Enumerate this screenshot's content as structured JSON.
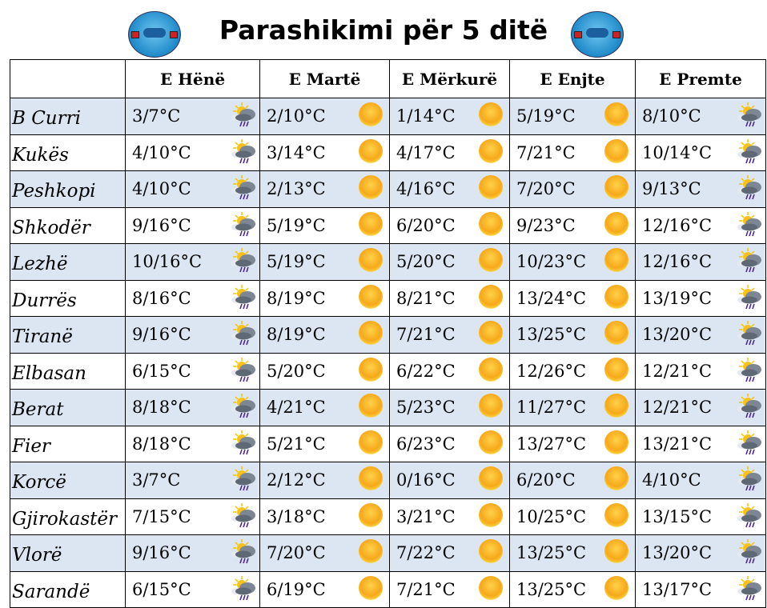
{
  "title": "Parashikimi për 5 ditë",
  "days": [
    "E Hënë",
    "E Martë",
    "E Mërkurë",
    "E Enjte",
    "E Premte"
  ],
  "icons": {
    "sun": "sun-icon",
    "rain": "sun-cloud-rain-icon"
  },
  "colors": {
    "alt_row": "#dce6f2"
  },
  "rows": [
    {
      "city": "B Curri",
      "temps": [
        "3/7°C",
        "2/10°C",
        "1/14°C",
        "5/19°C",
        "8/10°C"
      ],
      "icons": [
        "rain",
        "sun",
        "sun",
        "sun",
        "rain"
      ]
    },
    {
      "city": "Kukës",
      "temps": [
        "4/10°C",
        "3/14°C",
        "4/17°C",
        "7/21°C",
        "10/14°C"
      ],
      "icons": [
        "rain",
        "sun",
        "sun",
        "sun",
        "rain"
      ]
    },
    {
      "city": "Peshkopi",
      "temps": [
        "4/10°C",
        "2/13°C",
        "4/16°C",
        "7/20°C",
        "9/13°C"
      ],
      "icons": [
        "rain",
        "sun",
        "sun",
        "sun",
        "rain"
      ]
    },
    {
      "city": "Shkodër",
      "temps": [
        "9/16°C",
        "5/19°C",
        "6/20°C",
        "9/23°C",
        "12/16°C"
      ],
      "icons": [
        "rain",
        "sun",
        "sun",
        "sun",
        "rain"
      ]
    },
    {
      "city": "Lezhë",
      "temps": [
        "10/16°C",
        "5/19°C",
        "5/20°C",
        "10/23°C",
        "12/16°C"
      ],
      "icons": [
        "rain",
        "sun",
        "sun",
        "sun",
        "rain"
      ]
    },
    {
      "city": "Durrës",
      "temps": [
        "8/16°C",
        "8/19°C",
        "8/21°C",
        "13/24°C",
        "13/19°C"
      ],
      "icons": [
        "rain",
        "sun",
        "sun",
        "sun",
        "rain"
      ]
    },
    {
      "city": "Tiranë",
      "temps": [
        "9/16°C",
        "8/19°C",
        "7/21°C",
        "13/25°C",
        "13/20°C"
      ],
      "icons": [
        "rain",
        "sun",
        "sun",
        "sun",
        "rain"
      ]
    },
    {
      "city": "Elbasan",
      "temps": [
        "6/15°C",
        "5/20°C",
        "6/22°C",
        "12/26°C",
        "12/21°C"
      ],
      "icons": [
        "rain",
        "sun",
        "sun",
        "sun",
        "rain"
      ]
    },
    {
      "city": "Berat",
      "temps": [
        "8/18°C",
        "4/21°C",
        "5/23°C",
        "11/27°C",
        "12/21°C"
      ],
      "icons": [
        "rain",
        "sun",
        "sun",
        "sun",
        "rain"
      ]
    },
    {
      "city": "Fier",
      "temps": [
        "8/18°C",
        "5/21°C",
        "6/23°C",
        "13/27°C",
        "13/21°C"
      ],
      "icons": [
        "rain",
        "sun",
        "sun",
        "sun",
        "rain"
      ]
    },
    {
      "city": "Korcë",
      "temps": [
        "3/7°C",
        "2/12°C",
        "0/16°C",
        "6/20°C",
        "4/10°C"
      ],
      "icons": [
        "rain",
        "sun",
        "sun",
        "sun",
        "rain"
      ]
    },
    {
      "city": "Gjirokastër",
      "temps": [
        "7/15°C",
        "3/18°C",
        "3/21°C",
        "10/25°C",
        "13/15°C"
      ],
      "icons": [
        "rain",
        "sun",
        "sun",
        "sun",
        "rain"
      ]
    },
    {
      "city": "Vlorë",
      "temps": [
        "9/16°C",
        "7/20°C",
        "7/22°C",
        "13/25°C",
        "13/20°C"
      ],
      "icons": [
        "rain",
        "sun",
        "sun",
        "sun",
        "rain"
      ]
    },
    {
      "city": "Sarandë",
      "temps": [
        "6/15°C",
        "6/19°C",
        "7/21°C",
        "13/25°C",
        "13/17°C"
      ],
      "icons": [
        "rain",
        "sun",
        "sun",
        "sun",
        "rain"
      ]
    }
  ]
}
